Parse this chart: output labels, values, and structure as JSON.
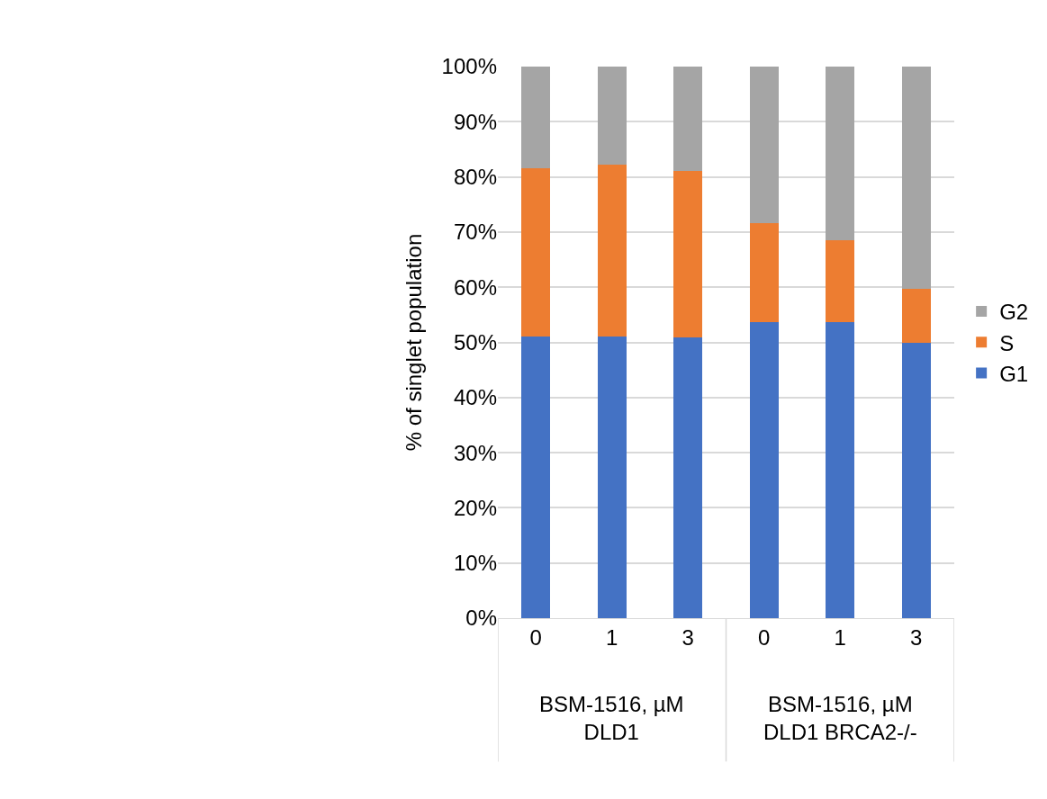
{
  "chart_data": {
    "type": "bar",
    "stacked": true,
    "ylabel": "% of singlet population",
    "categories": [
      "0",
      "1",
      "3",
      "0",
      "1",
      "3"
    ],
    "series": [
      {
        "name": "G1",
        "color": "#4472c4",
        "values": [
          51.1,
          51.1,
          50.9,
          53.6,
          53.6,
          50.0
        ]
      },
      {
        "name": "S",
        "color": "#ed7d31",
        "values": [
          30.4,
          31.1,
          30.2,
          18.0,
          14.9,
          9.7
        ]
      },
      {
        "name": "G2",
        "color": "#a5a5a5",
        "values": [
          18.5,
          17.8,
          18.9,
          28.4,
          31.5,
          40.3
        ]
      }
    ],
    "annotations": [
      "BSM-1516, µM\nDLD1",
      "BSM-1516, µM\nDLD1 BRCA2-/-"
    ],
    "ylim": [
      0,
      100
    ],
    "yticks": [
      {
        "value": 0,
        "label": "0%"
      },
      {
        "value": 10,
        "label": "10%"
      },
      {
        "value": 20,
        "label": "20%"
      },
      {
        "value": 30,
        "label": "30%"
      },
      {
        "value": 40,
        "label": "40%"
      },
      {
        "value": 50,
        "label": "50%"
      },
      {
        "value": 60,
        "label": "60%"
      },
      {
        "value": 70,
        "label": "70%"
      },
      {
        "value": 80,
        "label": "80%"
      },
      {
        "value": 90,
        "label": "90%"
      },
      {
        "value": 100,
        "label": "100%"
      }
    ],
    "grid": "y",
    "legend": "right"
  }
}
